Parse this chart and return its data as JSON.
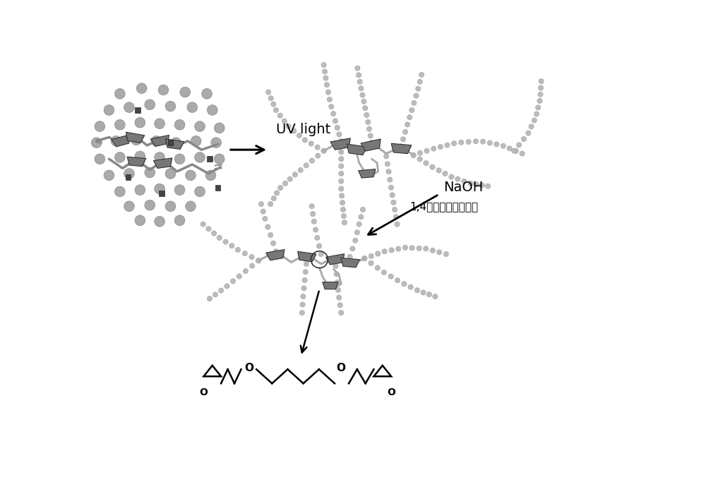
{
  "bg_color": "#ffffff",
  "sphere_color": "#aaaaaa",
  "sphere_edge": "#888888",
  "square_color": "#444444",
  "chain_color": "#999999",
  "bead_color": "#bbbbbb",
  "bead_edge": "#999999",
  "cd_color": "#777777",
  "cd_edge": "#333333",
  "text_uv": "UV light",
  "text_naoh": "NaOH",
  "text_reagent": "1,4丁二醇缩水甘油醚",
  "fig_width": 10.0,
  "fig_height": 6.9,
  "dpi": 100
}
